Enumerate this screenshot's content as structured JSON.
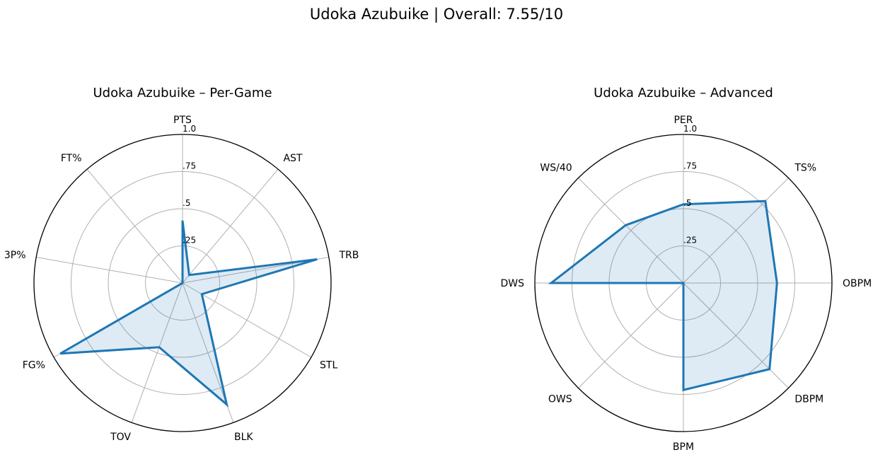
{
  "suptitle": "Udoka Azubuike | Overall: 7.55/10",
  "chart_data": [
    {
      "type": "radar",
      "title": "Udoka Azubuike – Per-Game",
      "categories": [
        "PTS",
        "AST",
        "TRB",
        "STL",
        "BLK",
        "TOV",
        "FG%",
        "3P%",
        "FT%"
      ],
      "values": [
        0.42,
        0.07,
        0.92,
        0.15,
        0.87,
        0.46,
        0.95,
        0.0,
        0.0
      ],
      "rlim": [
        0,
        1
      ],
      "rticks": [
        0.25,
        0.5,
        0.75,
        1.0
      ],
      "rtick_labels": [
        ".25",
        ".5",
        ".75",
        "1.0"
      ],
      "grid": true,
      "colors": {
        "line": "#1f77b4",
        "fill": "#1f77b4",
        "grid": "#b0b0b0",
        "outline": "#000000"
      }
    },
    {
      "type": "radar",
      "title": "Udoka Azubuike – Advanced",
      "categories": [
        "PER",
        "TS%",
        "OBPM",
        "DBPM",
        "BPM",
        "OWS",
        "DWS",
        "WS/40"
      ],
      "values": [
        0.53,
        0.78,
        0.63,
        0.82,
        0.72,
        0.0,
        0.89,
        0.55
      ],
      "rlim": [
        0,
        1
      ],
      "rticks": [
        0.25,
        0.5,
        0.75,
        1.0
      ],
      "rtick_labels": [
        ".25",
        ".5",
        ".75",
        "1.0"
      ],
      "grid": true,
      "colors": {
        "line": "#1f77b4",
        "fill": "#1f77b4",
        "grid": "#b0b0b0",
        "outline": "#000000"
      }
    }
  ]
}
